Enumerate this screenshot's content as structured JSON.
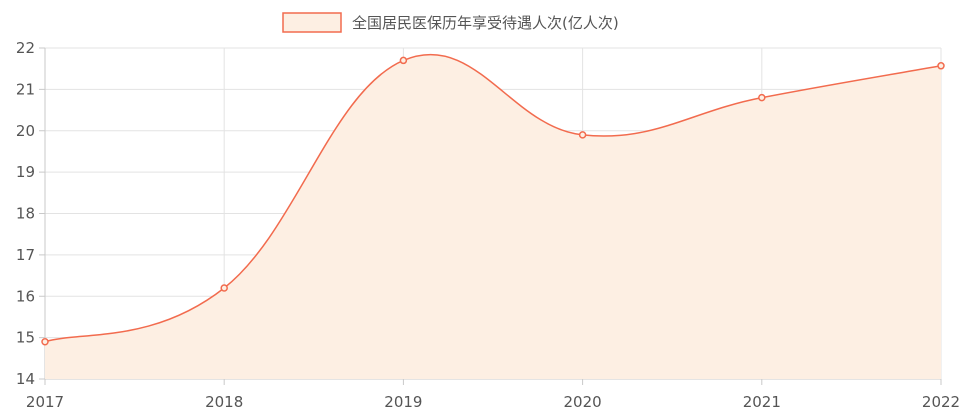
{
  "chart_data": {
    "type": "area",
    "title": "",
    "xlabel": "",
    "ylabel": "",
    "categories": [
      "2017",
      "2018",
      "2019",
      "2020",
      "2021",
      "2022"
    ],
    "series": [
      {
        "name": "全国居民医保历年享受待遇人次(亿人次)",
        "values": [
          14.9,
          16.2,
          21.7,
          19.9,
          20.8,
          21.57
        ]
      }
    ],
    "ylim": [
      14,
      22
    ],
    "yticks": [
      "14",
      "15",
      "16",
      "17",
      "18",
      "19",
      "20",
      "21",
      "22"
    ],
    "grid": true,
    "legend": "top-center",
    "colors": {
      "line": "#f26b4e",
      "fill": "#fdefe3",
      "grid": "#e3e3e3",
      "axis": "#c9c9c9"
    }
  }
}
